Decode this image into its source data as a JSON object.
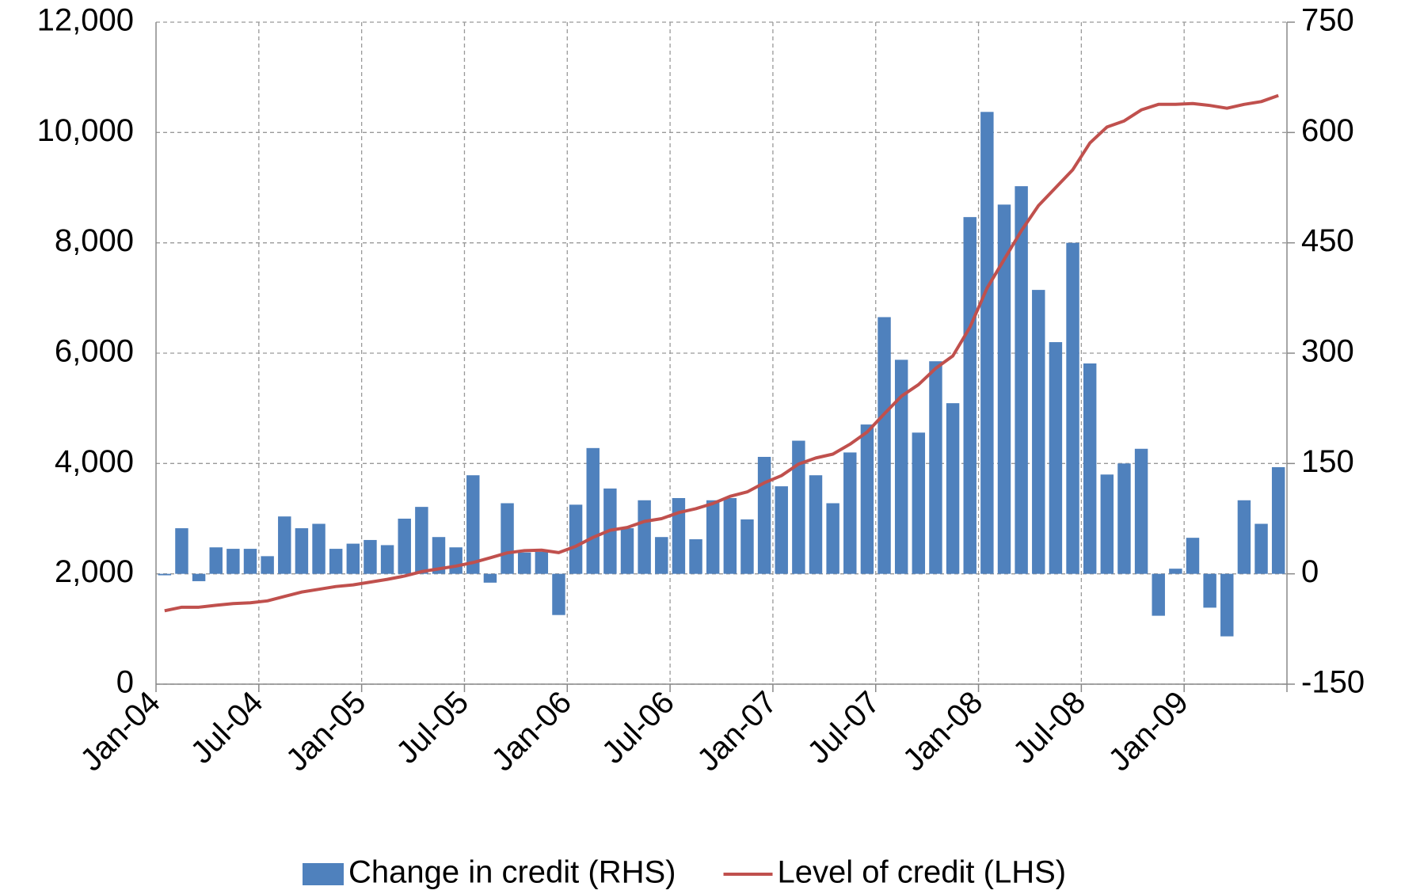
{
  "chart_data": {
    "type": "bar_line",
    "categories": [
      "Jan-04",
      null,
      null,
      null,
      null,
      null,
      "Jul-04",
      null,
      null,
      null,
      null,
      null,
      "Jan-05",
      null,
      null,
      null,
      null,
      null,
      "Jul-05",
      null,
      null,
      null,
      null,
      null,
      "Jan-06",
      null,
      null,
      null,
      null,
      null,
      "Jul-06",
      null,
      null,
      null,
      null,
      null,
      "Jan-07",
      null,
      null,
      null,
      null,
      null,
      "Jul-07",
      null,
      null,
      null,
      null,
      null,
      "Jan-08",
      null,
      null,
      null,
      null,
      null,
      "Jul-08",
      null,
      null,
      null,
      null,
      null,
      "Jan-09",
      null,
      null,
      null,
      null,
      null
    ],
    "series": [
      {
        "name": "Change in credit (RHS)",
        "type": "bar",
        "axis": "y2",
        "color": "#4f81bd",
        "values": [
          -2,
          62,
          -10,
          36,
          34,
          34,
          24,
          78,
          62,
          68,
          34,
          41,
          46,
          39,
          75,
          91,
          50,
          36,
          134,
          -12,
          96,
          29,
          30,
          -56,
          94,
          171,
          116,
          62,
          100,
          50,
          103,
          47,
          100,
          103,
          74,
          159,
          119,
          181,
          134,
          96,
          165,
          203,
          349,
          291,
          192,
          289,
          232,
          485,
          628,
          502,
          527,
          386,
          315,
          450,
          286,
          135,
          150,
          170,
          -57,
          7,
          49,
          -46,
          -85,
          100,
          68,
          145
        ]
      },
      {
        "name": "Level of credit (LHS)",
        "type": "line",
        "axis": "y",
        "color": "#c0504d",
        "values": [
          1330,
          1395,
          1395,
          1430,
          1460,
          1475,
          1510,
          1590,
          1670,
          1720,
          1770,
          1800,
          1850,
          1900,
          1960,
          2040,
          2090,
          2140,
          2205,
          2290,
          2380,
          2420,
          2430,
          2385,
          2500,
          2660,
          2790,
          2840,
          2950,
          3000,
          3110,
          3180,
          3275,
          3405,
          3485,
          3650,
          3780,
          3990,
          4100,
          4170,
          4350,
          4570,
          4900,
          5220,
          5430,
          5725,
          5950,
          6470,
          7180,
          7700,
          8220,
          8675,
          9000,
          9325,
          9810,
          10100,
          10210,
          10410,
          10510,
          10510,
          10525,
          10490,
          10440,
          10510,
          10560,
          10670
        ]
      }
    ],
    "ylim": [
      0,
      12000
    ],
    "yticks": [
      0,
      {
        "value": 2000,
        "label": "2,000"
      },
      {
        "value": 4000,
        "label": "4,000"
      },
      {
        "value": 6000,
        "label": "6,000"
      },
      {
        "value": 8000,
        "label": "8,000"
      },
      {
        "value": 10000,
        "label": "10,000"
      },
      {
        "value": 12000,
        "label": "12,000"
      }
    ],
    "y2lim": [
      -150,
      750
    ],
    "y2ticks": [
      -150,
      0,
      150,
      300,
      450,
      600,
      750
    ],
    "grid": true,
    "legend": "bottom"
  }
}
